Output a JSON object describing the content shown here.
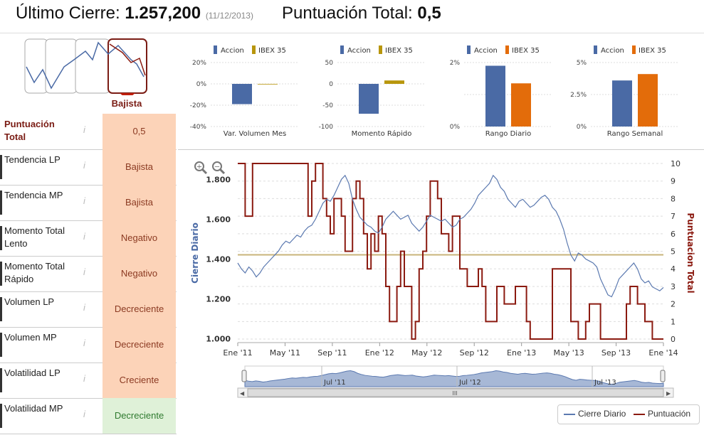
{
  "header": {
    "cierre_label": "Último Cierre:",
    "cierre_value": "1.257,200",
    "cierre_date": "(11/12/2013)",
    "total_label": "Puntuación Total:",
    "total_value": "0,5"
  },
  "trend": {
    "label": "Bajista"
  },
  "rows": [
    {
      "label": "Puntuación Total",
      "info": "i",
      "value": "0,5",
      "tone": "neg"
    },
    {
      "label": "Tendencia LP",
      "info": "i",
      "value": "Bajista",
      "tone": "neg"
    },
    {
      "label": "Tendencia MP",
      "info": "i",
      "value": "Bajista",
      "tone": "neg"
    },
    {
      "label": "Momento Total Lento",
      "info": "i",
      "value": "Negativo",
      "tone": "neg"
    },
    {
      "label": "Momento Total Rápido",
      "info": "i",
      "value": "Negativo",
      "tone": "neg"
    },
    {
      "label": "Volumen LP",
      "info": "i",
      "value": "Decreciente",
      "tone": "neg"
    },
    {
      "label": "Volumen MP",
      "info": "i",
      "value": "Decreciente",
      "tone": "neg"
    },
    {
      "label": "Volatilidad LP",
      "info": "i",
      "value": "Creciente",
      "tone": "neg"
    },
    {
      "label": "Volatilidad MP",
      "info": "i",
      "value": "Decreciente",
      "tone": "pos"
    }
  ],
  "colors": {
    "accion": "#4a6aa5",
    "ibex": "#b8960c",
    "orange": "#e36c0a",
    "price": "#5b79b0",
    "score": "#8b1a10",
    "ref": "#c9b47a",
    "neg_bg": "#fcd3b8",
    "pos_bg": "#dff1d8"
  },
  "chart_data": [
    {
      "type": "bar",
      "title": "Var. Volumen Mes",
      "legend": [
        "Accion",
        "IBEX 35"
      ],
      "categories": [
        "Accion",
        "IBEX 35"
      ],
      "values": [
        -19,
        0
      ],
      "bar_colors": [
        "#4a6aa5",
        "#b8960c"
      ],
      "yticks": [
        "20%",
        "0%",
        "-20%",
        "-40%"
      ],
      "ylim": [
        -40,
        20
      ]
    },
    {
      "type": "bar",
      "title": "Momento Rápido",
      "legend": [
        "Accion",
        "IBEX 35"
      ],
      "categories": [
        "Accion",
        "IBEX 35"
      ],
      "values": [
        -70,
        8
      ],
      "bar_colors": [
        "#4a6aa5",
        "#b8960c"
      ],
      "yticks": [
        "50",
        "0",
        "-50",
        "-100"
      ],
      "ylim": [
        -100,
        50
      ]
    },
    {
      "type": "bar",
      "title": "Rango Diario",
      "legend": [
        "Accion",
        "IBEX 35"
      ],
      "categories": [
        "Accion",
        "IBEX 35"
      ],
      "values": [
        1.9,
        1.35
      ],
      "bar_colors": [
        "#4a6aa5",
        "#e36c0a"
      ],
      "yticks": [
        "2%",
        "",
        "0%"
      ],
      "ylim": [
        0,
        2
      ]
    },
    {
      "type": "bar",
      "title": "Rango Semanal",
      "legend": [
        "Accion",
        "IBEX 35"
      ],
      "categories": [
        "Accion",
        "IBEX 35"
      ],
      "values": [
        3.6,
        4.1
      ],
      "bar_colors": [
        "#4a6aa5",
        "#e36c0a"
      ],
      "yticks": [
        "5%",
        "2.5%",
        "0%"
      ],
      "ylim": [
        0,
        5
      ]
    },
    {
      "type": "line",
      "ylabel_left": "Cierre Diario",
      "ylabel_right": "Puntuacion Total",
      "yticks_left": [
        "1.800",
        "1.600",
        "1.400",
        "1.200",
        "1.000"
      ],
      "ylim_left": [
        980,
        1880
      ],
      "yticks_right": [
        "10",
        "9",
        "8",
        "7",
        "6",
        "5",
        "4",
        "3",
        "2",
        "1",
        "0"
      ],
      "ylim_right": [
        -0.2,
        10
      ],
      "xticks": [
        "Ene '11",
        "May '11",
        "Sep '11",
        "Ene '12",
        "May '12",
        "Sep '12",
        "Ene '13",
        "May '13",
        "Sep '13",
        "Ene '14"
      ],
      "reference_line": 4.8,
      "series": [
        {
          "name": "Cierre Diario",
          "axis": "left",
          "values": [
            1380,
            1350,
            1330,
            1360,
            1340,
            1310,
            1330,
            1360,
            1380,
            1400,
            1420,
            1440,
            1470,
            1490,
            1480,
            1500,
            1520,
            1510,
            1540,
            1560,
            1570,
            1600,
            1640,
            1680,
            1700,
            1690,
            1720,
            1760,
            1800,
            1820,
            1780,
            1700,
            1650,
            1610,
            1590,
            1570,
            1560,
            1540,
            1530,
            1560,
            1600,
            1620,
            1640,
            1620,
            1600,
            1610,
            1620,
            1580,
            1560,
            1540,
            1560,
            1590,
            1620,
            1610,
            1600,
            1590,
            1600,
            1580,
            1560,
            1570,
            1600,
            1610,
            1630,
            1650,
            1680,
            1720,
            1740,
            1760,
            1780,
            1820,
            1800,
            1760,
            1740,
            1700,
            1680,
            1660,
            1690,
            1700,
            1680,
            1660,
            1670,
            1690,
            1710,
            1720,
            1700,
            1660,
            1640,
            1600,
            1550,
            1480,
            1420,
            1390,
            1430,
            1420,
            1400,
            1390,
            1380,
            1360,
            1300,
            1260,
            1220,
            1210,
            1250,
            1300,
            1320,
            1340,
            1360,
            1380,
            1350,
            1300,
            1280,
            1290,
            1260,
            1250,
            1240,
            1257
          ]
        },
        {
          "name": "Puntuación",
          "axis": "right",
          "values": [
            10,
            10,
            7,
            7,
            10,
            10,
            10,
            10,
            10,
            10,
            10,
            10,
            10,
            10,
            10,
            10,
            10,
            10,
            10,
            7,
            9,
            10,
            10,
            8,
            7,
            6,
            8,
            8,
            7,
            5,
            5,
            8,
            9,
            8,
            6,
            4,
            6,
            5,
            7,
            6,
            3,
            1,
            1,
            3,
            5,
            3,
            3,
            0,
            1,
            4,
            5,
            7,
            9,
            9,
            8,
            6,
            6,
            5,
            7,
            7,
            4,
            4,
            3,
            3,
            3,
            4,
            3,
            1,
            1,
            1,
            3,
            3,
            2,
            2,
            2,
            3,
            3,
            3,
            1,
            0,
            0,
            0,
            0,
            0,
            0,
            4,
            4,
            4,
            4,
            4,
            1,
            1,
            0,
            0,
            1,
            2,
            2,
            2,
            0,
            0,
            0,
            0,
            0,
            0,
            0,
            2,
            3,
            3,
            2,
            2,
            1,
            1,
            0,
            0,
            0,
            0
          ]
        }
      ]
    }
  ],
  "legend_main": {
    "price": "Cierre Diario",
    "score": "Puntuación"
  },
  "navigator": {
    "labels": [
      "Jul '11",
      "Jul '12",
      "Jul '13"
    ],
    "scroll_glyph": "III",
    "left_arrow": "◀",
    "right_arrow": "▶"
  },
  "zoom": {
    "in": "+",
    "out": "−"
  }
}
